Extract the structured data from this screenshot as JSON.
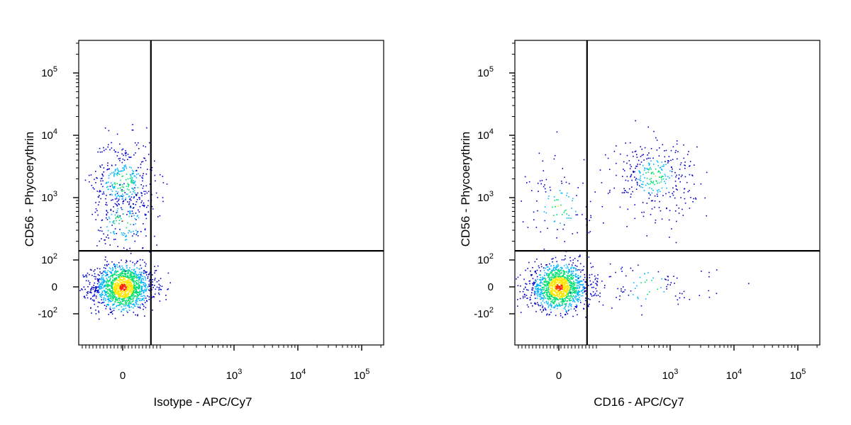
{
  "colors": {
    "frame": "#000000",
    "gate": "#000000",
    "density_low": "#0000c8",
    "density_mid_low": "#00b4ff",
    "density_mid": "#00e070",
    "density_mid_high": "#ffe600",
    "density_high": "#ff1e00"
  },
  "chart_data": [
    {
      "type": "scatter",
      "panel_id": "left",
      "xlabel": "Isotype - APC/Cy7",
      "ylabel": "CD56 - Phycoerythrin",
      "x_scale": "biexponential",
      "y_scale": "biexponential",
      "x_ticks": [
        {
          "value": 0,
          "label": "0"
        },
        {
          "value": 1000,
          "label": "10^3"
        },
        {
          "value": 10000,
          "label": "10^4"
        },
        {
          "value": 100000,
          "label": "10^5"
        }
      ],
      "y_ticks": [
        {
          "value": -100,
          "label": "-10^2"
        },
        {
          "value": 0,
          "label": "0"
        },
        {
          "value": 100,
          "label": "10^2"
        },
        {
          "value": 1000,
          "label": "10^3"
        },
        {
          "value": 10000,
          "label": "10^4"
        },
        {
          "value": 100000,
          "label": "10^5"
        }
      ],
      "xlim": [
        -300,
        262144
      ],
      "ylim": [
        -300,
        262144
      ],
      "quadrant_gate": {
        "x": 70,
        "y": 140
      },
      "populations": [
        {
          "name": "",
          "x_center": 0,
          "y_center": 0,
          "x_spread": 40,
          "y_spread": 40,
          "count": 1400
        },
        {
          "name": "",
          "x_center": 0,
          "y_center": 1800,
          "x_spread": 40,
          "y_spread": 0.35,
          "count": 380
        },
        {
          "name": "",
          "x_center": 0,
          "y_center": 400,
          "x_spread": 35,
          "y_spread": 0.35,
          "count": 160
        }
      ]
    },
    {
      "type": "scatter",
      "panel_id": "right",
      "xlabel": "CD16 - APC/Cy7",
      "ylabel": "CD56 - Phycoerythrin",
      "x_scale": "biexponential",
      "y_scale": "biexponential",
      "x_ticks": [
        {
          "value": 0,
          "label": "0"
        },
        {
          "value": 1000,
          "label": "10^3"
        },
        {
          "value": 10000,
          "label": "10^4"
        },
        {
          "value": 100000,
          "label": "10^5"
        }
      ],
      "y_ticks": [
        {
          "value": -100,
          "label": "-10^2"
        },
        {
          "value": 0,
          "label": "0"
        },
        {
          "value": 100,
          "label": "10^2"
        },
        {
          "value": 1000,
          "label": "10^3"
        },
        {
          "value": 10000,
          "label": "10^4"
        },
        {
          "value": 100000,
          "label": "10^5"
        }
      ],
      "xlim": [
        -300,
        262144
      ],
      "ylim": [
        -300,
        262144
      ],
      "quadrant_gate": {
        "x": 70,
        "y": 140
      },
      "populations": [
        {
          "name": "",
          "x_center": 0,
          "y_center": 0,
          "x_spread": 40,
          "y_spread": 40,
          "count": 1300
        },
        {
          "name": "",
          "x_center": 600,
          "y_center": 2200,
          "x_spread": 0.3,
          "y_spread": 0.3,
          "count": 330
        },
        {
          "name": "",
          "x_center": 0,
          "y_center": 700,
          "x_spread": 40,
          "y_spread": 0.45,
          "count": 110
        },
        {
          "name": "",
          "x_center": 500,
          "y_center": 0,
          "x_spread": 0.5,
          "y_spread": 40,
          "count": 90
        }
      ]
    }
  ]
}
